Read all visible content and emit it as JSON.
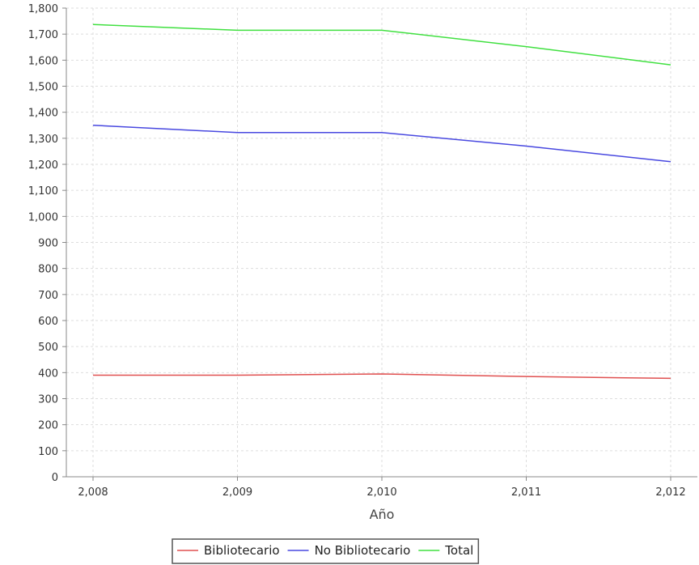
{
  "chart_data": {
    "type": "line",
    "title": "",
    "xlabel": "Año",
    "ylabel": "",
    "x": [
      2008,
      2009,
      2010,
      2011,
      2012
    ],
    "x_tick_labels": [
      "2,008",
      "2,009",
      "2,010",
      "2,011",
      "2,012"
    ],
    "ylim": [
      0,
      1800
    ],
    "y_ticks": [
      0,
      100,
      200,
      300,
      400,
      500,
      600,
      700,
      800,
      900,
      1000,
      1100,
      1200,
      1300,
      1400,
      1500,
      1600,
      1700,
      1800
    ],
    "y_tick_labels": [
      "0",
      "100",
      "200",
      "300",
      "400",
      "500",
      "600",
      "700",
      "800",
      "900",
      "1,000",
      "1,100",
      "1,200",
      "1,300",
      "1,400",
      "1,500",
      "1,600",
      "1,700",
      "1,800"
    ],
    "grid": true,
    "legend_position": "bottom",
    "series": [
      {
        "name": "Bibliotecario",
        "color": "#e05050",
        "values": [
          390,
          390,
          395,
          385,
          378
        ]
      },
      {
        "name": "No Bibliotecario",
        "color": "#4848e0",
        "values": [
          1350,
          1322,
          1322,
          1270,
          1210
        ]
      },
      {
        "name": "Total",
        "color": "#40e040",
        "values": [
          1737,
          1715,
          1715,
          1652,
          1582
        ]
      }
    ]
  }
}
